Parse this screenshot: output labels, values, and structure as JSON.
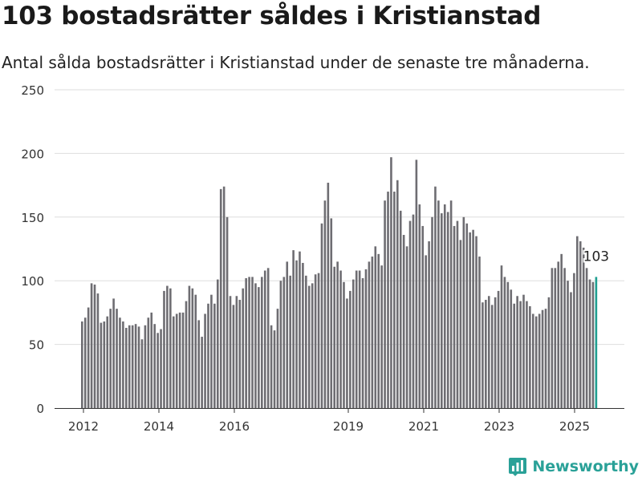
{
  "chart_data": {
    "type": "bar",
    "title": "103 bostadsrätter såldes i Kristianstad",
    "subtitle": "Antal sålda bostadsrätter i Kristianstad under de senaste tre månaderna.",
    "xlabel": "",
    "ylabel": "",
    "ylim": [
      0,
      250
    ],
    "yticks": [
      0,
      50,
      100,
      150,
      200,
      250
    ],
    "xticks": [
      "2012",
      "2014",
      "2016",
      "2019",
      "2021",
      "2023",
      "2025"
    ],
    "grid": true,
    "legend": "none",
    "bar_color": "#6e6d72",
    "highlight_color": "#1f9e90",
    "annotation": {
      "label": "103",
      "value": 103
    },
    "series": [
      {
        "values": [
          68,
          71,
          79,
          98,
          97,
          90,
          67,
          68,
          72,
          78,
          86,
          78,
          71,
          68,
          63,
          65,
          65,
          66,
          64,
          54,
          65,
          71,
          75,
          66,
          59,
          62,
          92,
          96,
          94,
          72,
          74,
          75,
          75,
          84,
          96,
          94,
          89,
          69,
          56,
          74,
          82,
          89,
          82,
          101,
          172,
          174,
          150,
          88,
          81,
          88,
          85,
          94,
          102,
          103,
          103,
          98,
          95,
          103,
          108,
          110,
          65,
          61,
          78,
          100,
          103,
          115,
          104,
          124,
          116,
          123,
          114,
          104,
          96,
          98,
          105,
          106,
          145,
          163,
          177,
          149,
          111,
          115,
          108,
          99,
          86,
          92,
          101,
          108,
          108,
          102,
          109,
          115,
          119,
          127,
          121,
          112,
          163,
          170,
          197,
          170,
          179,
          155,
          136,
          127,
          147,
          152,
          195,
          160,
          143,
          120,
          131,
          150,
          174,
          163,
          153,
          160,
          154,
          163,
          143,
          147,
          132,
          150,
          145,
          138,
          140,
          135,
          119,
          83,
          85,
          88,
          81,
          87,
          92,
          112,
          103,
          99,
          93,
          82,
          88,
          84,
          89,
          84,
          80,
          74,
          72,
          74,
          77,
          78,
          87,
          110,
          110,
          115,
          121,
          110,
          100,
          91,
          106,
          135,
          131,
          126,
          110,
          101,
          99,
          103
        ]
      }
    ]
  },
  "brand": {
    "name": "Newsworthy",
    "color": "#2aa198"
  }
}
